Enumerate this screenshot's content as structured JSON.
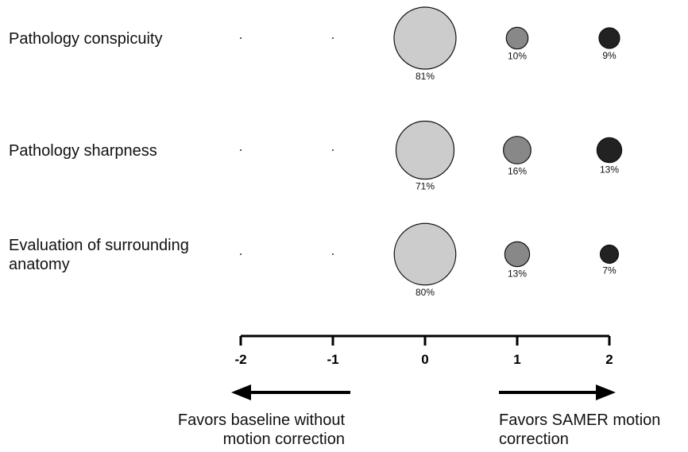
{
  "chart_data": {
    "type": "scatter",
    "x_ticks": [
      "-2",
      "-1",
      "0",
      "1",
      "2"
    ],
    "x_values": [
      -2,
      -1,
      0,
      1,
      2
    ],
    "xlim": [
      -2,
      2
    ],
    "rows": [
      {
        "label": "Pathology conspicuity",
        "values": [
          0,
          0,
          81,
          10,
          9
        ],
        "labels": [
          "",
          "",
          "81%",
          "10%",
          "9%"
        ]
      },
      {
        "label": "Pathology sharpness",
        "values": [
          0,
          0,
          71,
          16,
          13
        ],
        "labels": [
          "",
          "",
          "71%",
          "16%",
          "13%"
        ]
      },
      {
        "label": "Evaluation of surrounding anatomy",
        "values": [
          0,
          0,
          80,
          13,
          7
        ],
        "labels": [
          "",
          "",
          "80%",
          "13%",
          "7%"
        ]
      }
    ],
    "bubble_colors": [
      "#222222",
      "#222222",
      "#cccccc",
      "#888888",
      "#222222"
    ],
    "left_caption": "Favors baseline without motion correction",
    "right_caption": "Favors SAMER motion correction"
  }
}
